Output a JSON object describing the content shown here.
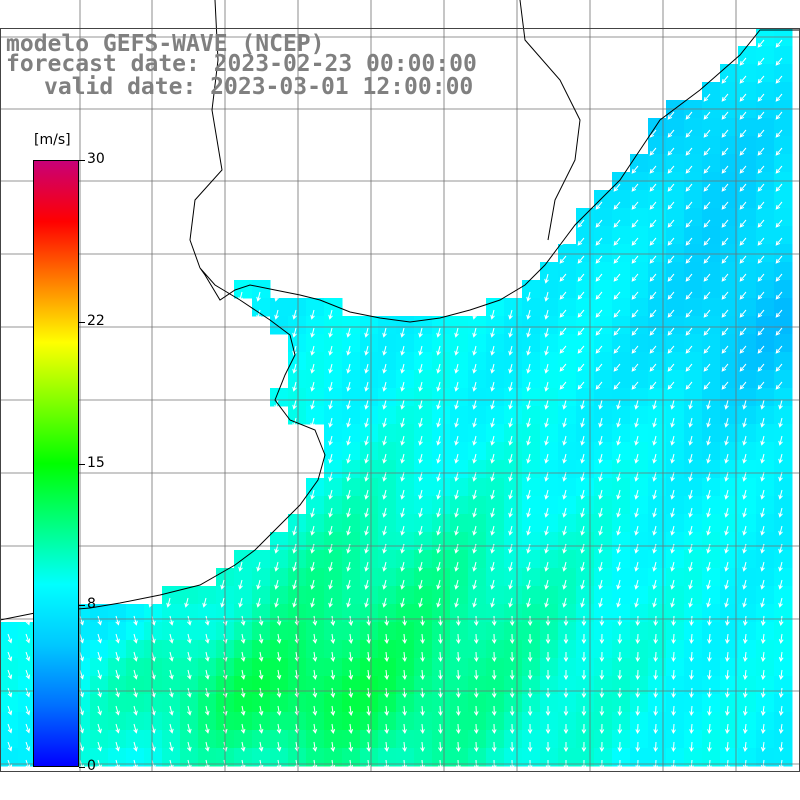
{
  "title": {
    "line1": "modelo GEFS-WAVE (NCEP)",
    "line2": "forecast date: 2023-02-23 00:00:00",
    "line3": "valid date: 2023-03-01 12:00:00"
  },
  "colorbar": {
    "unit": "[m/s]",
    "ticks": [
      "30",
      "22",
      "15",
      "8",
      "0"
    ],
    "tick_values": [
      30,
      22,
      15,
      8,
      0
    ],
    "range": [
      0,
      30
    ],
    "colors": [
      "#0000ff",
      "#0070ff",
      "#00c8ff",
      "#00ffff",
      "#00ff80",
      "#00ff00",
      "#80ff00",
      "#ffff00",
      "#ff8000",
      "#ff0000",
      "#c80078"
    ]
  },
  "map": {
    "type": "wind speed field with direction vectors",
    "land_color": "#ffffff",
    "grid": true,
    "dominant_wind_direction": "from north-northwest toward south",
    "ocean_speed_range_mps": [
      4,
      13
    ]
  }
}
